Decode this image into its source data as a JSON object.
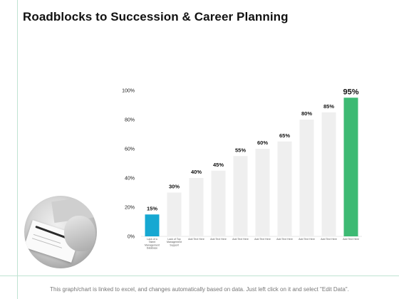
{
  "slide": {
    "title": "Roadblocks to Succession & Career Planning",
    "footer": "This graph/chart is linked to excel, and changes automatically based on data. Just left click on it and select \"Edit Data\"."
  },
  "colors": {
    "bar_default": "#efefef",
    "bar_first": "#16a8d2",
    "bar_last": "#3dba73",
    "border": "#bfe3d2"
  },
  "photo_icon": "business-hand-pen-photo",
  "chart_data": {
    "type": "bar",
    "categories": [
      "Lack of a Talent Management Database",
      "Lack of Top Management Support",
      "Add Text Here",
      "Add Text Here",
      "Add Text Here",
      "Add Text Here",
      "Add Text Here",
      "Add Text Here",
      "Add Text Here",
      "Add Text Here"
    ],
    "values": [
      15,
      30,
      40,
      45,
      55,
      60,
      65,
      80,
      85,
      95
    ],
    "value_labels": [
      "15%",
      "30%",
      "40%",
      "45%",
      "55%",
      "60%",
      "65%",
      "80%",
      "85%",
      "95%"
    ],
    "ylim": [
      0,
      100
    ],
    "yticks": [
      0,
      20,
      40,
      60,
      80,
      100
    ],
    "ytick_labels": [
      "0%",
      "20%",
      "40%",
      "60%",
      "80%",
      "100%"
    ],
    "grid": false,
    "legend": "none"
  }
}
